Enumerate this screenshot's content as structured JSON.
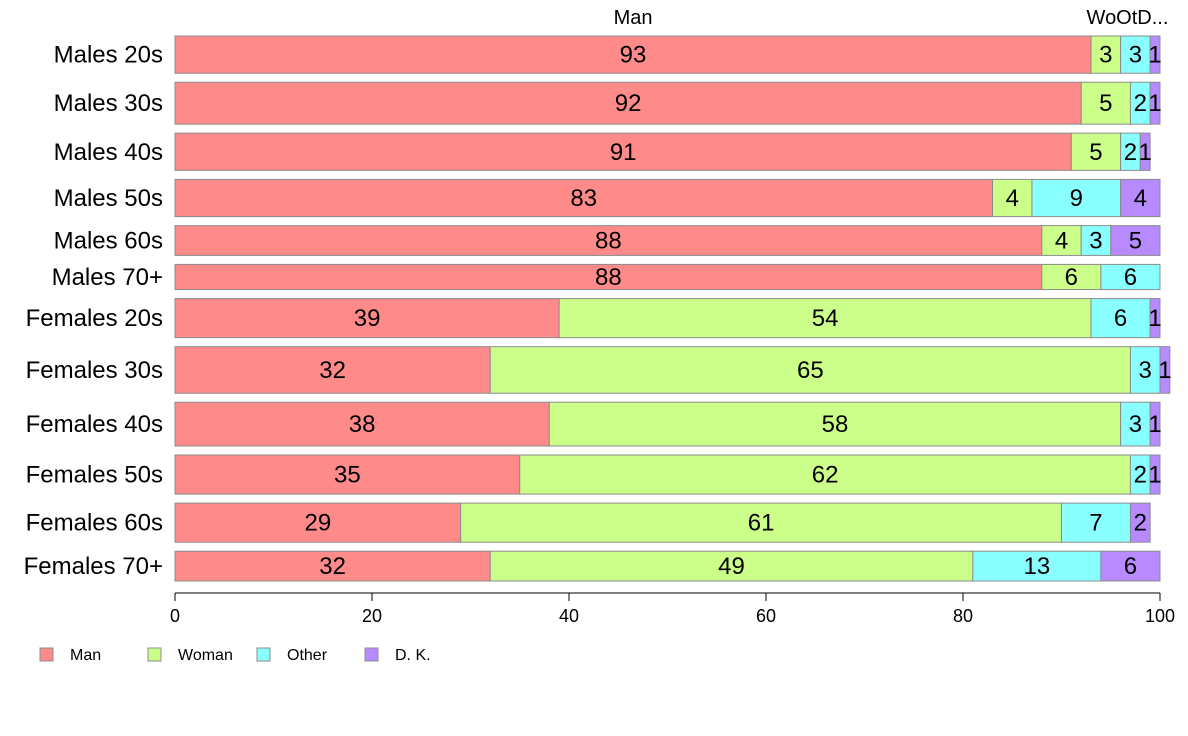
{
  "chart_data": {
    "type": "bar",
    "orientation": "horizontal",
    "stacked": true,
    "categories": [
      "Males 20s",
      "Males 30s",
      "Males 40s",
      "Males 50s",
      "Males 60s",
      "Males 70+",
      "Females 20s",
      "Females 30s",
      "Females 40s",
      "Females 50s",
      "Females 60s",
      "Females 70+"
    ],
    "category_weights": [
      4,
      4.5,
      4,
      4,
      3.2,
      2.7,
      4.2,
      5,
      4.7,
      4.2,
      4.2,
      3.2
    ],
    "series": [
      {
        "name": "Man",
        "color": "#ff8a8a",
        "values": [
          93,
          92,
          91,
          83,
          88,
          88,
          39,
          32,
          38,
          35,
          29,
          32
        ]
      },
      {
        "name": "Woman",
        "color": "#ccff8a",
        "values": [
          3,
          5,
          5,
          4,
          4,
          6,
          54,
          65,
          58,
          62,
          61,
          49
        ]
      },
      {
        "name": "Other",
        "color": "#8affff",
        "values": [
          3,
          2,
          2,
          9,
          3,
          6,
          6,
          3,
          3,
          2,
          7,
          13
        ]
      },
      {
        "name": "D. K.",
        "color": "#b88aff",
        "values": [
          1,
          1,
          1,
          4,
          5,
          0,
          1,
          1,
          1,
          1,
          2,
          6
        ]
      }
    ],
    "top_labels": [
      "Man",
      "WoOtD..."
    ],
    "xlim": [
      0,
      100
    ],
    "xticks": [
      0,
      20,
      40,
      60,
      80,
      100
    ],
    "legend_position": "bottom-left",
    "grid": false,
    "xlabel": "",
    "ylabel": ""
  }
}
